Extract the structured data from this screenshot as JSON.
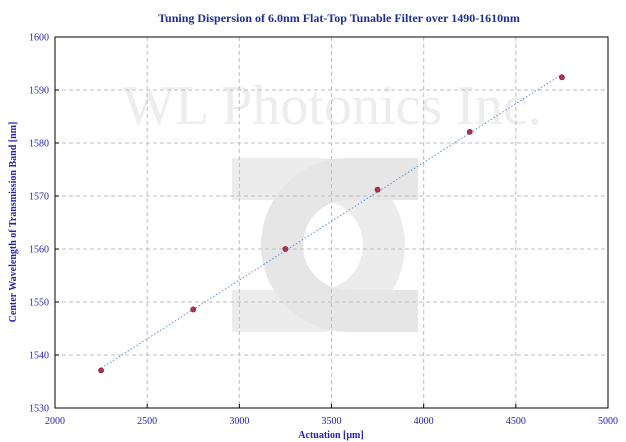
{
  "chart_data": {
    "type": "scatter",
    "title": "Tuning Dispersion of 6.0nm Flat-Top Tunable Filter over 1490-1610nm",
    "xlabel": "Actuation [μm]",
    "ylabel": "Center Wavelength of Transmission Band [nm]",
    "xlim": [
      2000,
      5000
    ],
    "ylim": [
      1530,
      1600
    ],
    "xticks": [
      2000,
      2500,
      3000,
      3500,
      4000,
      4500,
      5000
    ],
    "yticks": [
      1530,
      1540,
      1550,
      1560,
      1570,
      1580,
      1590,
      1600
    ],
    "grid": true,
    "legend": "none",
    "series": [
      {
        "x": [
          2250,
          2750,
          3250,
          3750,
          4250,
          4750
        ],
        "y": [
          1537.1,
          1548.6,
          1560.0,
          1571.2,
          1582.1,
          1592.4
        ],
        "trendline": "linear"
      }
    ],
    "colors": {
      "marker": "#b03050",
      "trendline": "#5b8fd6",
      "grid": "#bdbdbd",
      "text": "#2323b0",
      "title": "#1f2f8f"
    }
  },
  "watermark": {
    "text": "WL Photonics Inc.",
    "logo": "wl-photonics-logo-icon"
  }
}
